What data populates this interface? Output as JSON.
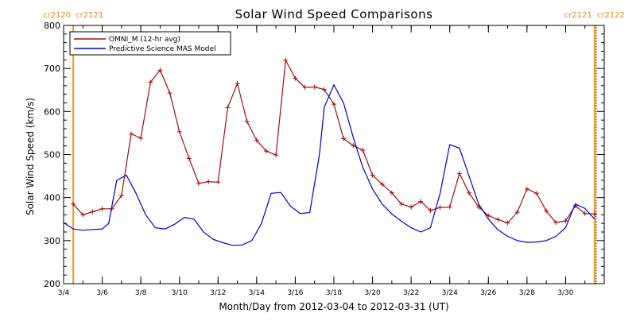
{
  "chart_data": {
    "type": "line",
    "title": "Solar Wind Speed Comparisons",
    "xlabel": "Month/Day from 2012-03-04 to 2012-03-31 (UT)",
    "ylabel": "Solar Wind Speed (km/s)",
    "xlim": [
      "2012-03-04",
      "2012-03-31"
    ],
    "ylim": [
      200,
      800
    ],
    "y_ticks": [
      200,
      300,
      400,
      500,
      600,
      700,
      800
    ],
    "x_ticks": [
      {
        "date": "2012-03-04",
        "label": "3/4"
      },
      {
        "date": "2012-03-06",
        "label": "3/6"
      },
      {
        "date": "2012-03-08",
        "label": "3/8"
      },
      {
        "date": "2012-03-10",
        "label": "3/10"
      },
      {
        "date": "2012-03-12",
        "label": "3/12"
      },
      {
        "date": "2012-03-14",
        "label": "3/14"
      },
      {
        "date": "2012-03-16",
        "label": "3/16"
      },
      {
        "date": "2012-03-18",
        "label": "3/18"
      },
      {
        "date": "2012-03-20",
        "label": "3/20"
      },
      {
        "date": "2012-03-22",
        "label": "3/22"
      },
      {
        "date": "2012-03-24",
        "label": "3/24"
      },
      {
        "date": "2012-03-26",
        "label": "3/26"
      },
      {
        "date": "2012-03-28",
        "label": "3/28"
      },
      {
        "date": "2012-03-30",
        "label": "3/30"
      }
    ],
    "legend_position": "top-left",
    "rotation_markers": [
      {
        "date": "2012-03-04 12:00",
        "left_label": "cr2120",
        "right_label": "cr2121"
      },
      {
        "date": "2012-03-31 12:00",
        "left_label": "cr2121",
        "right_label": "cr2122"
      }
    ],
    "series": [
      {
        "name": "OMNI_M (12-hr avg)",
        "color": "#a01010",
        "markers": "plus",
        "points": [
          [
            "2012-03-04 12:00",
            385
          ],
          [
            "2012-03-05 00:00",
            360
          ],
          [
            "2012-03-05 12:00",
            367
          ],
          [
            "2012-03-06 00:00",
            374
          ],
          [
            "2012-03-06 12:00",
            374
          ],
          [
            "2012-03-07 00:00",
            405
          ],
          [
            "2012-03-07 12:00",
            548
          ],
          [
            "2012-03-08 00:00",
            538
          ],
          [
            "2012-03-08 12:00",
            668
          ],
          [
            "2012-03-09 00:00",
            696
          ],
          [
            "2012-03-09 12:00",
            643
          ],
          [
            "2012-03-10 00:00",
            553
          ],
          [
            "2012-03-10 12:00",
            491
          ],
          [
            "2012-03-11 00:00",
            433
          ],
          [
            "2012-03-11 12:00",
            437
          ],
          [
            "2012-03-12 00:00",
            436
          ],
          [
            "2012-03-12 12:00",
            609
          ],
          [
            "2012-03-13 00:00",
            665
          ],
          [
            "2012-03-13 12:00",
            577
          ],
          [
            "2012-03-14 00:00",
            533
          ],
          [
            "2012-03-14 12:00",
            508
          ],
          [
            "2012-03-15 00:00",
            499
          ],
          [
            "2012-03-15 12:00",
            719
          ],
          [
            "2012-03-16 00:00",
            677
          ],
          [
            "2012-03-16 12:00",
            656
          ],
          [
            "2012-03-17 00:00",
            657
          ],
          [
            "2012-03-17 12:00",
            651
          ],
          [
            "2012-03-18 00:00",
            617
          ],
          [
            "2012-03-18 12:00",
            537
          ],
          [
            "2012-03-19 00:00",
            521
          ],
          [
            "2012-03-19 12:00",
            510
          ],
          [
            "2012-03-20 00:00",
            452
          ],
          [
            "2012-03-20 12:00",
            431
          ],
          [
            "2012-03-21 00:00",
            411
          ],
          [
            "2012-03-21 12:00",
            385
          ],
          [
            "2012-03-22 00:00",
            378
          ],
          [
            "2012-03-22 12:00",
            391
          ],
          [
            "2012-03-23 00:00",
            370
          ],
          [
            "2012-03-23 12:00",
            377
          ],
          [
            "2012-03-24 00:00",
            378
          ],
          [
            "2012-03-24 12:00",
            456
          ],
          [
            "2012-03-25 00:00",
            411
          ],
          [
            "2012-03-25 12:00",
            378
          ],
          [
            "2012-03-26 00:00",
            358
          ],
          [
            "2012-03-26 12:00",
            349
          ],
          [
            "2012-03-27 00:00",
            341
          ],
          [
            "2012-03-27 12:00",
            366
          ],
          [
            "2012-03-28 00:00",
            420
          ],
          [
            "2012-03-28 12:00",
            410
          ],
          [
            "2012-03-29 00:00",
            369
          ],
          [
            "2012-03-29 12:00",
            342
          ],
          [
            "2012-03-30 00:00",
            346
          ],
          [
            "2012-03-30 12:00",
            381
          ],
          [
            "2012-03-31 00:00",
            363
          ],
          [
            "2012-03-31 12:00",
            362
          ]
        ]
      },
      {
        "name": "Predictive Science MAS Model",
        "color": "#0000cc",
        "markers": "none",
        "points": [
          [
            "2012-03-04 00:00",
            342
          ],
          [
            "2012-03-04 12:00",
            327
          ],
          [
            "2012-03-05 00:00",
            324
          ],
          [
            "2012-03-05 12:00",
            326
          ],
          [
            "2012-03-06 00:00",
            327
          ],
          [
            "2012-03-06 08:00",
            340
          ],
          [
            "2012-03-06 18:00",
            440
          ],
          [
            "2012-03-07 06:00",
            452
          ],
          [
            "2012-03-07 18:00",
            410
          ],
          [
            "2012-03-08 06:00",
            360
          ],
          [
            "2012-03-08 18:00",
            330
          ],
          [
            "2012-03-09 06:00",
            327
          ],
          [
            "2012-03-09 18:00",
            338
          ],
          [
            "2012-03-10 06:00",
            354
          ],
          [
            "2012-03-10 18:00",
            350
          ],
          [
            "2012-03-11 06:00",
            320
          ],
          [
            "2012-03-11 18:00",
            303
          ],
          [
            "2012-03-12 06:00",
            295
          ],
          [
            "2012-03-12 18:00",
            289
          ],
          [
            "2012-03-13 06:00",
            290
          ],
          [
            "2012-03-13 18:00",
            300
          ],
          [
            "2012-03-14 06:00",
            340
          ],
          [
            "2012-03-14 18:00",
            410
          ],
          [
            "2012-03-15 06:00",
            412
          ],
          [
            "2012-03-15 18:00",
            380
          ],
          [
            "2012-03-16 06:00",
            363
          ],
          [
            "2012-03-16 18:00",
            365
          ],
          [
            "2012-03-17 06:00",
            500
          ],
          [
            "2012-03-17 12:00",
            610
          ],
          [
            "2012-03-18 00:00",
            662
          ],
          [
            "2012-03-18 12:00",
            620
          ],
          [
            "2012-03-19 00:00",
            540
          ],
          [
            "2012-03-19 12:00",
            470
          ],
          [
            "2012-03-20 00:00",
            420
          ],
          [
            "2012-03-20 12:00",
            385
          ],
          [
            "2012-03-21 00:00",
            362
          ],
          [
            "2012-03-21 12:00",
            345
          ],
          [
            "2012-03-22 00:00",
            330
          ],
          [
            "2012-03-22 12:00",
            320
          ],
          [
            "2012-03-23 00:00",
            330
          ],
          [
            "2012-03-23 12:00",
            410
          ],
          [
            "2012-03-24 00:00",
            523
          ],
          [
            "2012-03-24 12:00",
            515
          ],
          [
            "2012-03-25 00:00",
            450
          ],
          [
            "2012-03-25 12:00",
            385
          ],
          [
            "2012-03-26 00:00",
            350
          ],
          [
            "2012-03-26 12:00",
            325
          ],
          [
            "2012-03-27 00:00",
            310
          ],
          [
            "2012-03-27 12:00",
            300
          ],
          [
            "2012-03-28 00:00",
            296
          ],
          [
            "2012-03-28 12:00",
            297
          ],
          [
            "2012-03-29 00:00",
            300
          ],
          [
            "2012-03-29 12:00",
            310
          ],
          [
            "2012-03-30 00:00",
            330
          ],
          [
            "2012-03-30 12:00",
            385
          ],
          [
            "2012-03-31 00:00",
            375
          ],
          [
            "2012-03-31 12:00",
            350
          ]
        ]
      }
    ]
  }
}
